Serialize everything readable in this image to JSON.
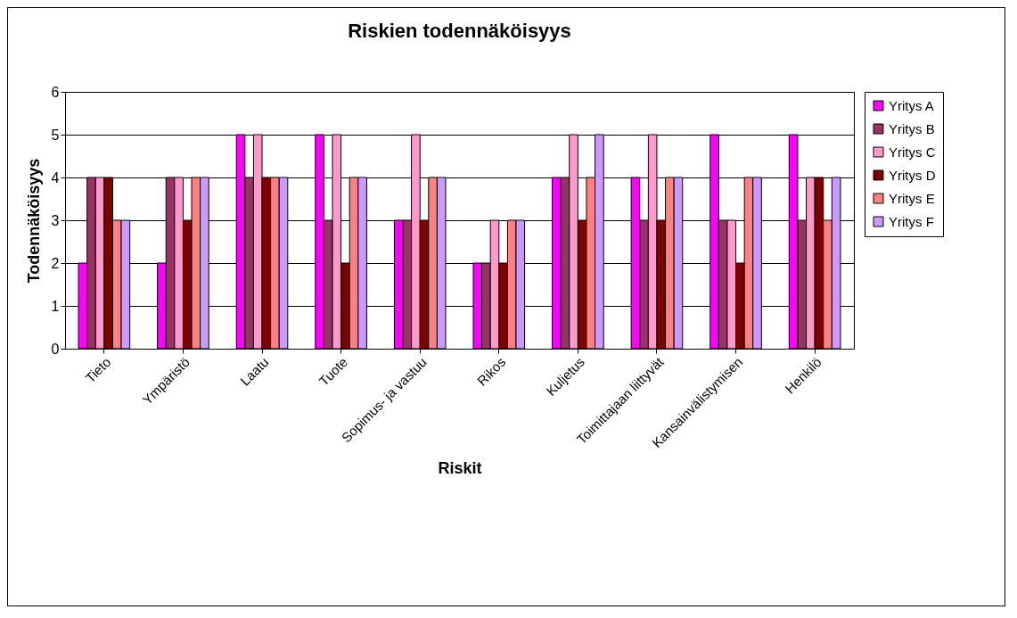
{
  "chart_data": {
    "type": "bar",
    "title": "Riskien todennäköisyys",
    "xlabel": "Riskit",
    "ylabel": "Todennäköisyys",
    "categories": [
      "Tieto",
      "Ympäristö",
      "Laatu",
      "Tuote",
      "Sopimus- ja vastuu",
      "Rikos",
      "Kuljetus",
      "Toimittajaan liittyvät",
      "Kansainvälistymisen",
      "Henkilö"
    ],
    "series": [
      {
        "name": "Yritys A",
        "color": "#ff00ff",
        "values": [
          2,
          2,
          5,
          5,
          3,
          2,
          4,
          4,
          5,
          5
        ]
      },
      {
        "name": "Yritys B",
        "color": "#993366",
        "values": [
          4,
          4,
          4,
          3,
          3,
          2,
          4,
          3,
          3,
          3
        ]
      },
      {
        "name": "Yritys C",
        "color": "#ff99cc",
        "values": [
          4,
          4,
          5,
          5,
          5,
          3,
          5,
          5,
          3,
          4
        ]
      },
      {
        "name": "Yritys D",
        "color": "#800000",
        "values": [
          4,
          3,
          4,
          2,
          3,
          2,
          3,
          3,
          2,
          4
        ]
      },
      {
        "name": "Yritys E",
        "color": "#ff8080",
        "values": [
          3,
          4,
          4,
          4,
          4,
          3,
          4,
          4,
          4,
          3
        ]
      },
      {
        "name": "Yritys F",
        "color": "#cc99ff",
        "values": [
          3,
          4,
          4,
          4,
          4,
          3,
          5,
          4,
          4,
          4
        ]
      }
    ],
    "ylim": [
      0,
      6
    ],
    "yticks": [
      0,
      1,
      2,
      3,
      4,
      5,
      6
    ],
    "grid": "y",
    "legend": "right"
  }
}
